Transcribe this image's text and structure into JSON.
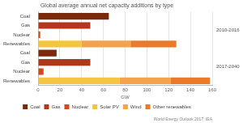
{
  "chart_data": {
    "type": "bar",
    "orientation": "horizontal",
    "stacked": true,
    "title": "Global average annual net capacity additions by type",
    "x_label": "GW",
    "source": "World Energy Outlook 2017, IEA",
    "groups": [
      "2010-2016",
      "2017-2040"
    ],
    "categories": [
      "Coal",
      "Gas",
      "Nuclear",
      "Renewables",
      "Coal",
      "Gas",
      "Nuclear",
      "Renewables"
    ],
    "series": [
      {
        "name": "Coal",
        "color": "#7a2a0c",
        "values": [
          65,
          null,
          null,
          null,
          17,
          null,
          null,
          null
        ]
      },
      {
        "name": "Gas",
        "color": "#b3371c",
        "values": [
          null,
          48,
          null,
          null,
          null,
          48,
          null,
          null
        ]
      },
      {
        "name": "Nuclear",
        "color": "#d2491f",
        "values": [
          null,
          null,
          2,
          null,
          null,
          null,
          5,
          null
        ]
      },
      {
        "name": "Solar PV",
        "color": "#f5c542",
        "values": [
          null,
          null,
          null,
          40,
          null,
          null,
          null,
          75
        ]
      },
      {
        "name": "Wind",
        "color": "#f4a24b",
        "values": [
          null,
          null,
          null,
          45,
          null,
          null,
          null,
          47
        ]
      },
      {
        "name": "Other renewables",
        "color": "#ea7a2a",
        "values": [
          null,
          null,
          null,
          42,
          null,
          null,
          null,
          36
        ]
      }
    ],
    "xlim": [
      0,
      160
    ],
    "xticks": [
      0,
      20,
      40,
      60,
      80,
      100,
      120,
      140,
      160
    ],
    "grid": true,
    "legend": "bottom"
  }
}
